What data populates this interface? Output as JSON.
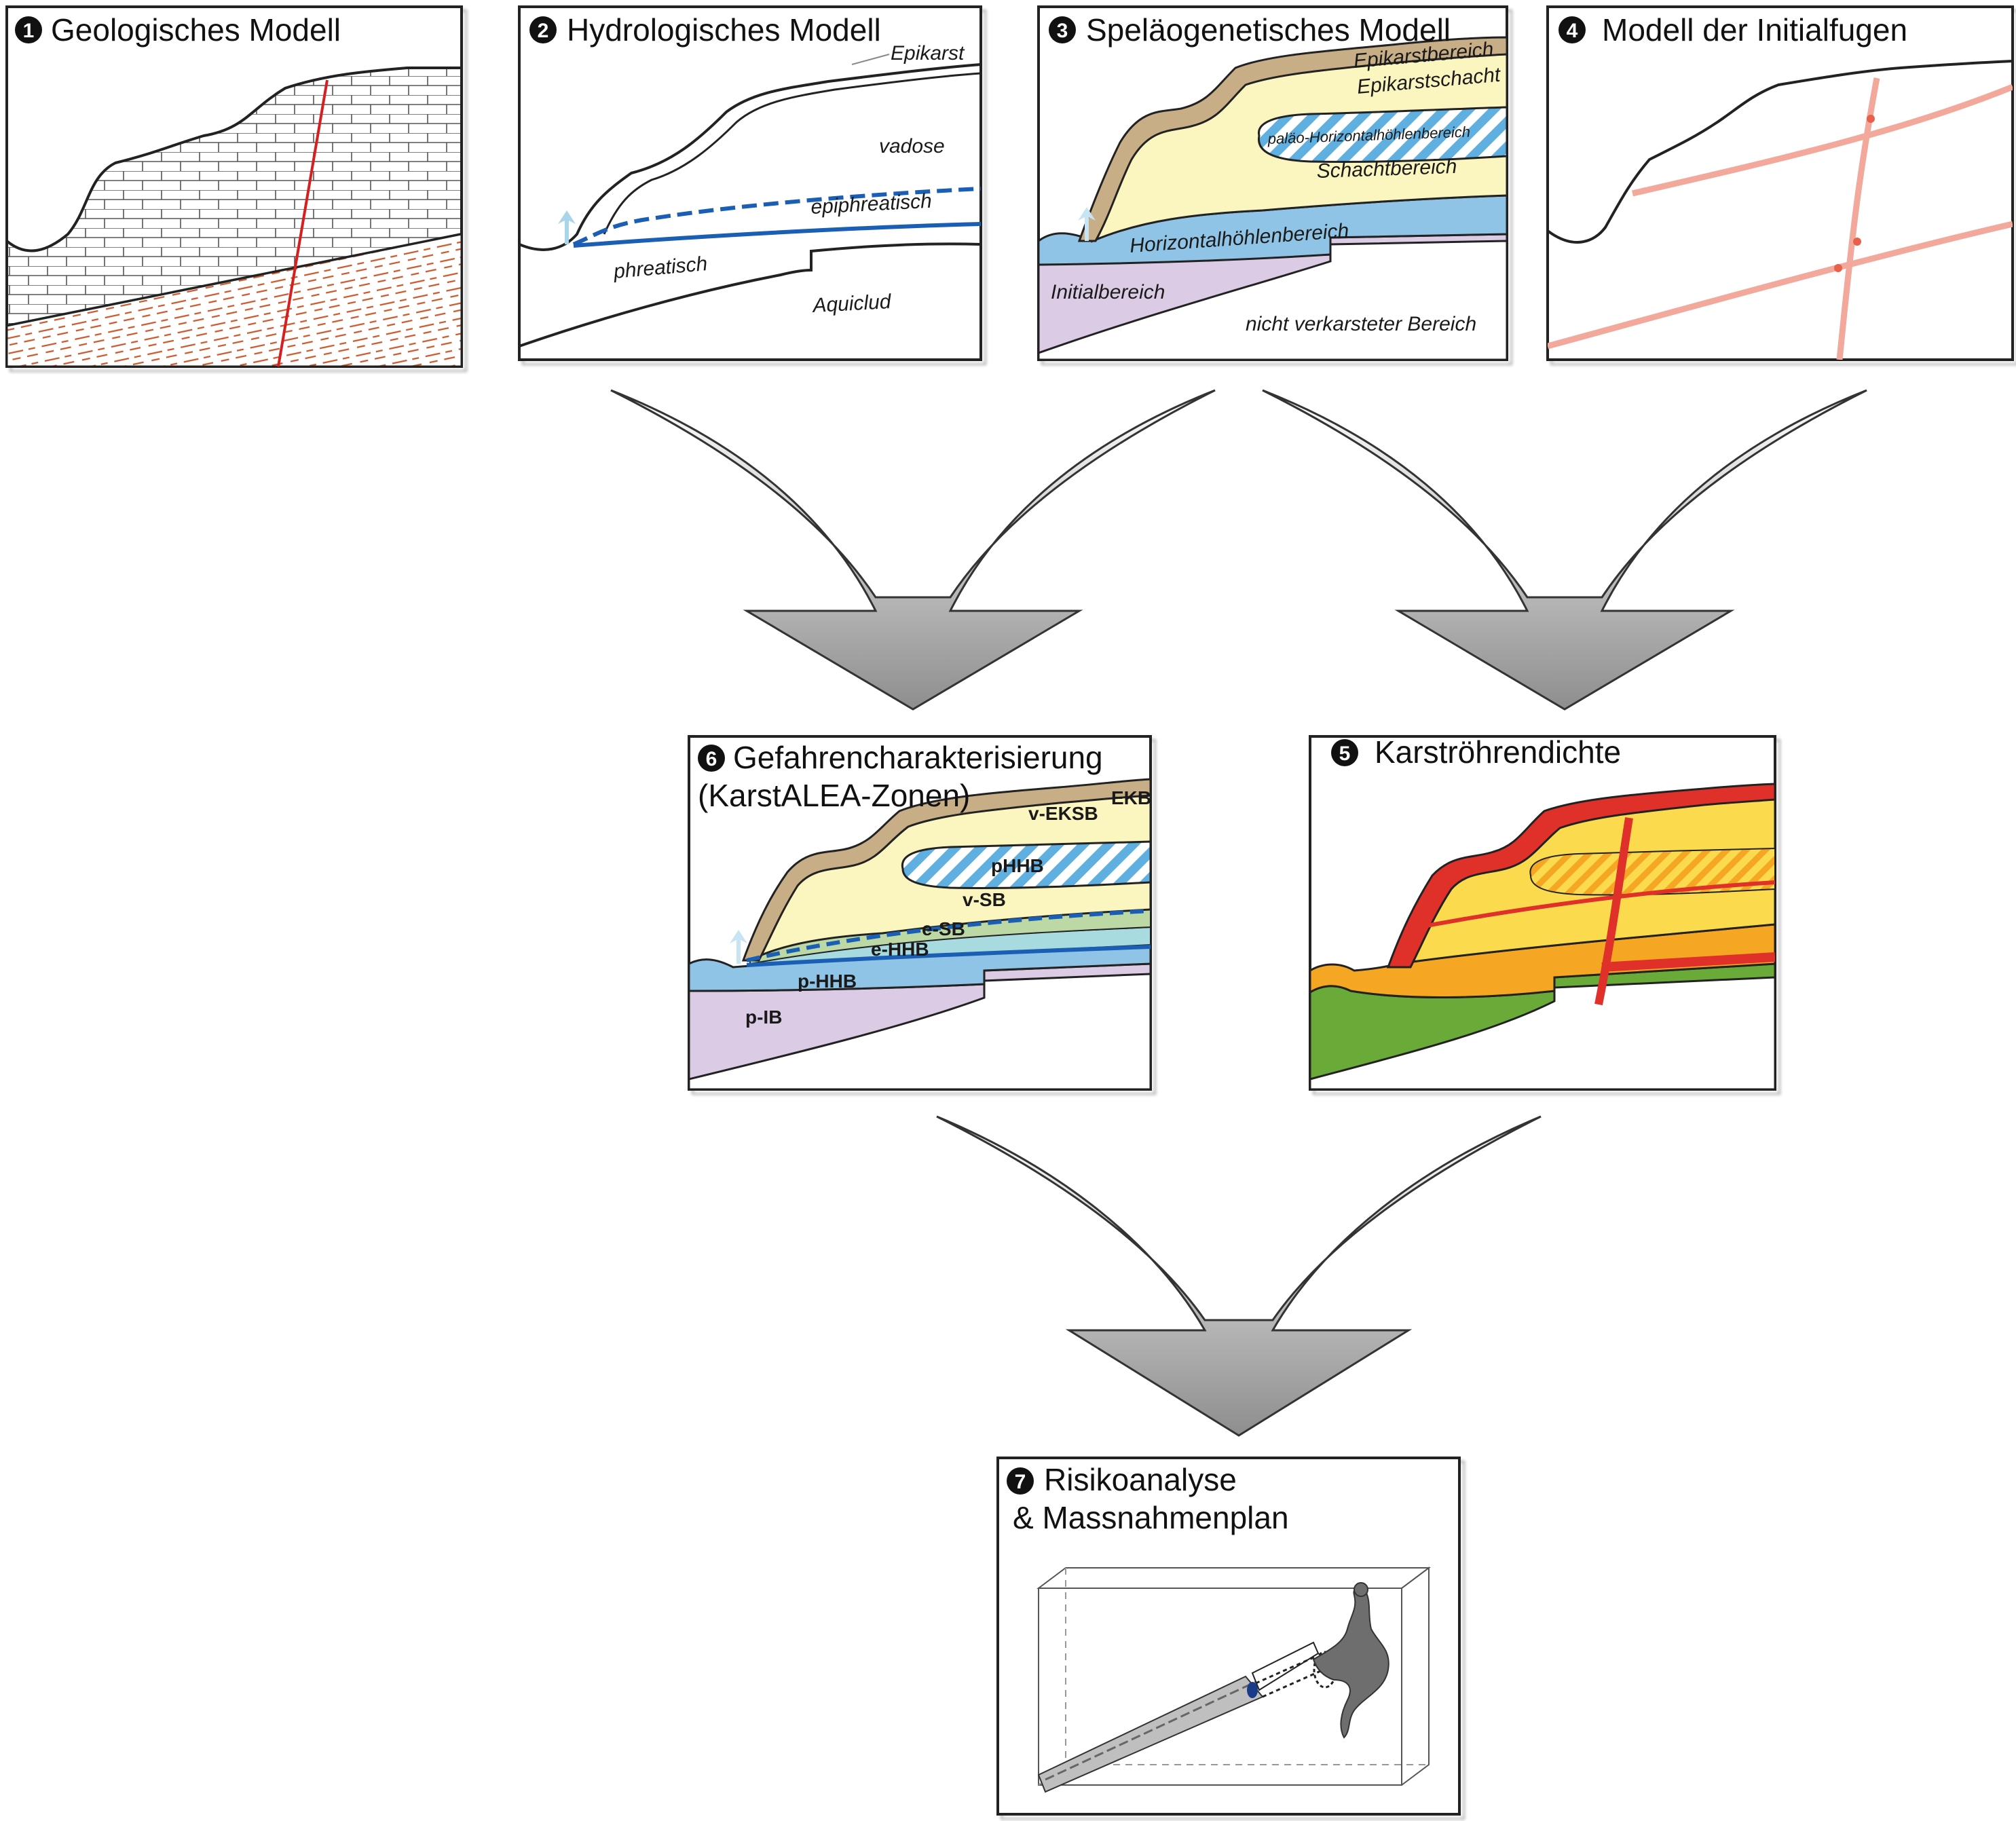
{
  "colors": {
    "fault": "#d62020",
    "water": "#1a5fb4",
    "epikarst": "#c8ae86",
    "shaft": "#fbf5c0",
    "horizontal": "#90c4e6",
    "initial": "#dccbe4",
    "joint": "#f2a89a",
    "density_high": "#e0302a",
    "density_mid": "#f5a623",
    "density_low": "#fbdb4d",
    "density_none": "#6aaa38"
  },
  "panels": {
    "p1": {
      "num": "1",
      "title": "Geologisches Modell"
    },
    "p2": {
      "num": "2",
      "title": "Hydrologisches Modell",
      "labels": {
        "epikarst": "Epikarst",
        "vadose": "vadose",
        "epiphreatisch": "epiphreatisch",
        "phreatisch": "phreatisch",
        "aquiclud": "Aquiclud"
      }
    },
    "p3": {
      "num": "3",
      "title": "Speläogenetisches Modell",
      "labels": {
        "epikarstbereich": "Epikarstbereich",
        "epikarstschacht": "Epikarstschacht",
        "palaeo": "paläo-Horizontalhöhlenbereich",
        "schacht": "Schachtbereich",
        "horizontal": "Horizontalhöhlenbereich",
        "initial": "Initialbereich",
        "nicht": "nicht verkarsteter Bereich"
      }
    },
    "p4": {
      "num": "4",
      "title": "Modell der Initialfugen"
    },
    "p5": {
      "num": "5",
      "title": "Karströhrendichte"
    },
    "p6": {
      "num": "6",
      "title_line1": "Gefahrencharakterisierung",
      "title_line2": "(KarstALEA-Zonen)",
      "labels": {
        "ekb": "EKB",
        "veksb": "v-EKSB",
        "phhb": "pHHB",
        "vsb": "v-SB",
        "esb": "e-SB",
        "ehhb": "e-HHB",
        "phhb2": "p-HHB",
        "pib": "p-IB"
      }
    },
    "p7": {
      "num": "7",
      "title_line1": "Risikoanalyse",
      "title_line2": "& Massnahmenplan"
    }
  }
}
